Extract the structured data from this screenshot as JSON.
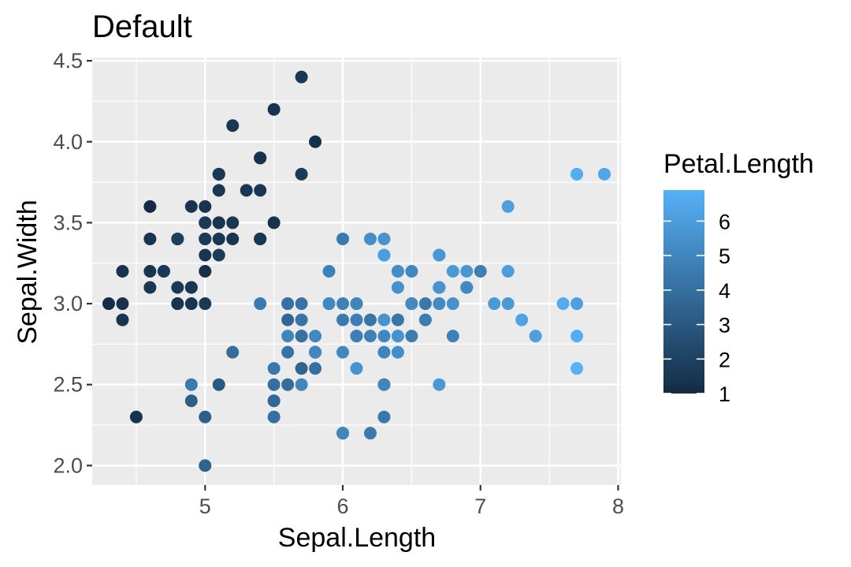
{
  "chart_data": {
    "type": "scatter",
    "title": "Default",
    "xlabel": "Sepal.Length",
    "ylabel": "Sepal.Width",
    "xlim": [
      4.18,
      8.02
    ],
    "ylim": [
      1.88,
      4.52
    ],
    "x_ticks": [
      5,
      6,
      7,
      8
    ],
    "x_tick_labels": [
      "5",
      "6",
      "7",
      "8"
    ],
    "y_ticks": [
      2.0,
      2.5,
      3.0,
      3.5,
      4.0,
      4.5
    ],
    "y_tick_labels": [
      "2.0",
      "2.5",
      "3.0",
      "3.5",
      "4.0",
      "4.5"
    ],
    "grid": true,
    "legend": {
      "title": "Petal.Length",
      "position": "right",
      "type": "colorbar",
      "range": [
        1.0,
        6.9
      ],
      "ticks": [
        1,
        2,
        3,
        4,
        5,
        6
      ],
      "tick_labels": [
        "1",
        "2",
        "3",
        "4",
        "5",
        "6"
      ],
      "low_color": "#132B43",
      "high_color": "#56B1F7"
    },
    "colors": {
      "panel_background": "#EBEBEB",
      "grid": "#FFFFFF"
    },
    "points": [
      {
        "x": 5.1,
        "y": 3.5,
        "c": 1.4
      },
      {
        "x": 4.9,
        "y": 3.0,
        "c": 1.4
      },
      {
        "x": 4.7,
        "y": 3.2,
        "c": 1.3
      },
      {
        "x": 4.6,
        "y": 3.1,
        "c": 1.5
      },
      {
        "x": 5.0,
        "y": 3.6,
        "c": 1.4
      },
      {
        "x": 5.4,
        "y": 3.9,
        "c": 1.7
      },
      {
        "x": 4.6,
        "y": 3.4,
        "c": 1.4
      },
      {
        "x": 5.0,
        "y": 3.4,
        "c": 1.5
      },
      {
        "x": 4.4,
        "y": 2.9,
        "c": 1.4
      },
      {
        "x": 4.9,
        "y": 3.1,
        "c": 1.5
      },
      {
        "x": 5.4,
        "y": 3.7,
        "c": 1.5
      },
      {
        "x": 4.8,
        "y": 3.4,
        "c": 1.6
      },
      {
        "x": 4.8,
        "y": 3.0,
        "c": 1.4
      },
      {
        "x": 4.3,
        "y": 3.0,
        "c": 1.1
      },
      {
        "x": 5.8,
        "y": 4.0,
        "c": 1.2
      },
      {
        "x": 5.7,
        "y": 4.4,
        "c": 1.5
      },
      {
        "x": 5.4,
        "y": 3.9,
        "c": 1.3
      },
      {
        "x": 5.1,
        "y": 3.5,
        "c": 1.4
      },
      {
        "x": 5.7,
        "y": 3.8,
        "c": 1.7
      },
      {
        "x": 5.1,
        "y": 3.8,
        "c": 1.5
      },
      {
        "x": 5.4,
        "y": 3.4,
        "c": 1.7
      },
      {
        "x": 5.1,
        "y": 3.7,
        "c": 1.5
      },
      {
        "x": 4.6,
        "y": 3.6,
        "c": 1.0
      },
      {
        "x": 5.1,
        "y": 3.3,
        "c": 1.7
      },
      {
        "x": 4.8,
        "y": 3.4,
        "c": 1.9
      },
      {
        "x": 5.0,
        "y": 3.0,
        "c": 1.6
      },
      {
        "x": 5.0,
        "y": 3.4,
        "c": 1.6
      },
      {
        "x": 5.2,
        "y": 3.5,
        "c": 1.5
      },
      {
        "x": 5.2,
        "y": 3.4,
        "c": 1.4
      },
      {
        "x": 4.7,
        "y": 3.2,
        "c": 1.6
      },
      {
        "x": 4.8,
        "y": 3.1,
        "c": 1.6
      },
      {
        "x": 5.4,
        "y": 3.4,
        "c": 1.5
      },
      {
        "x": 5.2,
        "y": 4.1,
        "c": 1.5
      },
      {
        "x": 5.5,
        "y": 4.2,
        "c": 1.4
      },
      {
        "x": 4.9,
        "y": 3.1,
        "c": 1.5
      },
      {
        "x": 5.0,
        "y": 3.2,
        "c": 1.2
      },
      {
        "x": 5.5,
        "y": 3.5,
        "c": 1.3
      },
      {
        "x": 4.9,
        "y": 3.6,
        "c": 1.4
      },
      {
        "x": 4.4,
        "y": 3.0,
        "c": 1.3
      },
      {
        "x": 5.1,
        "y": 3.4,
        "c": 1.5
      },
      {
        "x": 5.0,
        "y": 3.5,
        "c": 1.3
      },
      {
        "x": 4.5,
        "y": 2.3,
        "c": 1.3
      },
      {
        "x": 4.4,
        "y": 3.2,
        "c": 1.3
      },
      {
        "x": 5.0,
        "y": 3.5,
        "c": 1.6
      },
      {
        "x": 5.1,
        "y": 3.8,
        "c": 1.9
      },
      {
        "x": 4.8,
        "y": 3.0,
        "c": 1.4
      },
      {
        "x": 5.1,
        "y": 3.8,
        "c": 1.6
      },
      {
        "x": 4.6,
        "y": 3.2,
        "c": 1.4
      },
      {
        "x": 5.3,
        "y": 3.7,
        "c": 1.5
      },
      {
        "x": 5.0,
        "y": 3.3,
        "c": 1.4
      },
      {
        "x": 7.0,
        "y": 3.2,
        "c": 4.7
      },
      {
        "x": 6.4,
        "y": 3.2,
        "c": 4.5
      },
      {
        "x": 6.9,
        "y": 3.1,
        "c": 4.9
      },
      {
        "x": 5.5,
        "y": 2.3,
        "c": 4.0
      },
      {
        "x": 6.5,
        "y": 2.8,
        "c": 4.6
      },
      {
        "x": 5.7,
        "y": 2.8,
        "c": 4.5
      },
      {
        "x": 6.3,
        "y": 3.3,
        "c": 4.7
      },
      {
        "x": 4.9,
        "y": 2.4,
        "c": 3.3
      },
      {
        "x": 6.6,
        "y": 2.9,
        "c": 4.6
      },
      {
        "x": 5.2,
        "y": 2.7,
        "c": 3.9
      },
      {
        "x": 5.0,
        "y": 2.0,
        "c": 3.5
      },
      {
        "x": 5.9,
        "y": 3.0,
        "c": 4.2
      },
      {
        "x": 6.0,
        "y": 2.2,
        "c": 4.0
      },
      {
        "x": 6.1,
        "y": 2.9,
        "c": 4.7
      },
      {
        "x": 5.6,
        "y": 2.9,
        "c": 3.6
      },
      {
        "x": 6.7,
        "y": 3.1,
        "c": 4.4
      },
      {
        "x": 5.6,
        "y": 3.0,
        "c": 4.5
      },
      {
        "x": 5.8,
        "y": 2.7,
        "c": 4.1
      },
      {
        "x": 6.2,
        "y": 2.2,
        "c": 4.5
      },
      {
        "x": 5.6,
        "y": 2.5,
        "c": 3.9
      },
      {
        "x": 5.9,
        "y": 3.2,
        "c": 4.8
      },
      {
        "x": 6.1,
        "y": 2.8,
        "c": 4.0
      },
      {
        "x": 6.3,
        "y": 2.5,
        "c": 4.9
      },
      {
        "x": 6.1,
        "y": 2.8,
        "c": 4.7
      },
      {
        "x": 6.4,
        "y": 2.9,
        "c": 4.3
      },
      {
        "x": 6.6,
        "y": 3.0,
        "c": 4.4
      },
      {
        "x": 6.8,
        "y": 2.8,
        "c": 4.8
      },
      {
        "x": 6.7,
        "y": 3.0,
        "c": 5.0
      },
      {
        "x": 6.0,
        "y": 2.9,
        "c": 4.5
      },
      {
        "x": 5.7,
        "y": 2.6,
        "c": 3.5
      },
      {
        "x": 5.5,
        "y": 2.4,
        "c": 3.8
      },
      {
        "x": 5.5,
        "y": 2.4,
        "c": 3.7
      },
      {
        "x": 5.8,
        "y": 2.7,
        "c": 3.9
      },
      {
        "x": 6.0,
        "y": 2.7,
        "c": 5.1
      },
      {
        "x": 5.4,
        "y": 3.0,
        "c": 4.5
      },
      {
        "x": 6.0,
        "y": 3.4,
        "c": 4.5
      },
      {
        "x": 6.7,
        "y": 3.1,
        "c": 4.7
      },
      {
        "x": 6.3,
        "y": 2.3,
        "c": 4.4
      },
      {
        "x": 5.6,
        "y": 3.0,
        "c": 4.1
      },
      {
        "x": 5.5,
        "y": 2.5,
        "c": 4.0
      },
      {
        "x": 5.5,
        "y": 2.6,
        "c": 4.4
      },
      {
        "x": 6.1,
        "y": 3.0,
        "c": 4.6
      },
      {
        "x": 5.8,
        "y": 2.6,
        "c": 4.0
      },
      {
        "x": 5.0,
        "y": 2.3,
        "c": 3.3
      },
      {
        "x": 5.6,
        "y": 2.7,
        "c": 4.2
      },
      {
        "x": 5.7,
        "y": 3.0,
        "c": 4.2
      },
      {
        "x": 5.7,
        "y": 2.9,
        "c": 4.2
      },
      {
        "x": 6.2,
        "y": 2.9,
        "c": 4.3
      },
      {
        "x": 5.1,
        "y": 2.5,
        "c": 3.0
      },
      {
        "x": 5.7,
        "y": 2.8,
        "c": 4.1
      },
      {
        "x": 6.3,
        "y": 3.3,
        "c": 6.0
      },
      {
        "x": 5.8,
        "y": 2.7,
        "c": 5.1
      },
      {
        "x": 7.1,
        "y": 3.0,
        "c": 5.9
      },
      {
        "x": 6.3,
        "y": 2.9,
        "c": 5.6
      },
      {
        "x": 6.5,
        "y": 3.0,
        "c": 5.8
      },
      {
        "x": 7.6,
        "y": 3.0,
        "c": 6.6
      },
      {
        "x": 4.9,
        "y": 2.5,
        "c": 4.5
      },
      {
        "x": 7.3,
        "y": 2.9,
        "c": 6.3
      },
      {
        "x": 6.7,
        "y": 2.5,
        "c": 5.8
      },
      {
        "x": 7.2,
        "y": 3.6,
        "c": 6.1
      },
      {
        "x": 6.5,
        "y": 3.2,
        "c": 5.1
      },
      {
        "x": 6.4,
        "y": 2.7,
        "c": 5.3
      },
      {
        "x": 6.8,
        "y": 3.0,
        "c": 5.5
      },
      {
        "x": 5.7,
        "y": 2.5,
        "c": 5.0
      },
      {
        "x": 5.8,
        "y": 2.8,
        "c": 5.1
      },
      {
        "x": 6.4,
        "y": 3.2,
        "c": 5.3
      },
      {
        "x": 6.5,
        "y": 3.0,
        "c": 5.5
      },
      {
        "x": 7.7,
        "y": 3.8,
        "c": 6.7
      },
      {
        "x": 7.7,
        "y": 2.6,
        "c": 6.9
      },
      {
        "x": 6.0,
        "y": 2.2,
        "c": 5.0
      },
      {
        "x": 6.9,
        "y": 3.2,
        "c": 5.7
      },
      {
        "x": 5.6,
        "y": 2.8,
        "c": 4.9
      },
      {
        "x": 7.7,
        "y": 2.8,
        "c": 6.7
      },
      {
        "x": 6.3,
        "y": 2.7,
        "c": 4.9
      },
      {
        "x": 6.7,
        "y": 3.3,
        "c": 5.7
      },
      {
        "x": 7.2,
        "y": 3.2,
        "c": 6.0
      },
      {
        "x": 6.2,
        "y": 2.8,
        "c": 4.8
      },
      {
        "x": 6.1,
        "y": 3.0,
        "c": 4.9
      },
      {
        "x": 6.4,
        "y": 2.8,
        "c": 5.6
      },
      {
        "x": 7.2,
        "y": 3.0,
        "c": 5.8
      },
      {
        "x": 7.4,
        "y": 2.8,
        "c": 6.1
      },
      {
        "x": 7.9,
        "y": 3.8,
        "c": 6.4
      },
      {
        "x": 6.4,
        "y": 2.8,
        "c": 5.6
      },
      {
        "x": 6.3,
        "y": 2.8,
        "c": 5.1
      },
      {
        "x": 6.1,
        "y": 2.6,
        "c": 5.6
      },
      {
        "x": 7.7,
        "y": 3.0,
        "c": 6.1
      },
      {
        "x": 6.3,
        "y": 3.4,
        "c": 5.6
      },
      {
        "x": 6.4,
        "y": 3.1,
        "c": 5.5
      },
      {
        "x": 6.0,
        "y": 3.0,
        "c": 4.8
      },
      {
        "x": 6.9,
        "y": 3.1,
        "c": 5.4
      },
      {
        "x": 6.7,
        "y": 3.1,
        "c": 5.6
      },
      {
        "x": 6.9,
        "y": 3.1,
        "c": 5.1
      },
      {
        "x": 5.8,
        "y": 2.7,
        "c": 5.1
      },
      {
        "x": 6.8,
        "y": 3.2,
        "c": 5.9
      },
      {
        "x": 6.7,
        "y": 3.3,
        "c": 5.7
      },
      {
        "x": 6.7,
        "y": 3.0,
        "c": 5.2
      },
      {
        "x": 6.3,
        "y": 2.5,
        "c": 5.0
      },
      {
        "x": 6.5,
        "y": 3.0,
        "c": 5.2
      },
      {
        "x": 6.2,
        "y": 3.4,
        "c": 5.4
      },
      {
        "x": 5.9,
        "y": 3.0,
        "c": 5.1
      }
    ]
  }
}
